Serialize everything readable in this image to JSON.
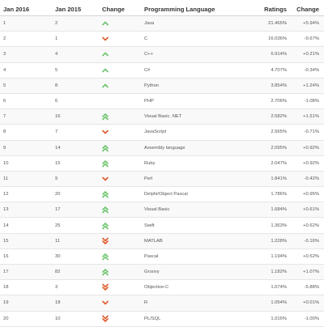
{
  "header": {
    "col1": "Jan 2016",
    "col2": "Jan 2015",
    "col3": "Change",
    "col4": "Programming Language",
    "col5": "Ratings",
    "col6": "Change"
  },
  "colors": {
    "up": "#6cc46c",
    "down": "#e05a2a"
  },
  "rows": [
    {
      "rank2016": "1",
      "rank2015": "2",
      "trend": "up",
      "language": "Java",
      "rating": "21.465%",
      "change": "+5.94%"
    },
    {
      "rank2016": "2",
      "rank2015": "1",
      "trend": "down",
      "language": "C",
      "rating": "16.036%",
      "change": "-0.67%"
    },
    {
      "rank2016": "3",
      "rank2015": "4",
      "trend": "up",
      "language": "C++",
      "rating": "6.914%",
      "change": "+0.21%"
    },
    {
      "rank2016": "4",
      "rank2015": "5",
      "trend": "up",
      "language": "C#",
      "rating": "4.707%",
      "change": "-0.34%"
    },
    {
      "rank2016": "5",
      "rank2015": "8",
      "trend": "up",
      "language": "Python",
      "rating": "3.854%",
      "change": "+1.24%"
    },
    {
      "rank2016": "6",
      "rank2015": "6",
      "trend": "none",
      "language": "PHP",
      "rating": "2.706%",
      "change": "-1.08%"
    },
    {
      "rank2016": "7",
      "rank2015": "16",
      "trend": "double-up",
      "language": "Visual Basic .NET",
      "rating": "2.582%",
      "change": "+1.51%"
    },
    {
      "rank2016": "8",
      "rank2015": "7",
      "trend": "down",
      "language": "JavaScript",
      "rating": "2.565%",
      "change": "-0.71%"
    },
    {
      "rank2016": "9",
      "rank2015": "14",
      "trend": "double-up",
      "language": "Assembly language",
      "rating": "2.095%",
      "change": "+0.92%"
    },
    {
      "rank2016": "10",
      "rank2015": "15",
      "trend": "double-up",
      "language": "Ruby",
      "rating": "2.047%",
      "change": "+0.92%"
    },
    {
      "rank2016": "11",
      "rank2015": "9",
      "trend": "down",
      "language": "Perl",
      "rating": "1.841%",
      "change": "-0.42%"
    },
    {
      "rank2016": "12",
      "rank2015": "20",
      "trend": "double-up",
      "language": "Delphi/Object Pascal",
      "rating": "1.786%",
      "change": "+0.95%"
    },
    {
      "rank2016": "13",
      "rank2015": "17",
      "trend": "double-up",
      "language": "Visual Basic",
      "rating": "1.684%",
      "change": "+0.61%"
    },
    {
      "rank2016": "14",
      "rank2015": "25",
      "trend": "double-up",
      "language": "Swift",
      "rating": "1.363%",
      "change": "+0.62%"
    },
    {
      "rank2016": "15",
      "rank2015": "11",
      "trend": "double-down",
      "language": "MATLAB",
      "rating": "1.228%",
      "change": "-0.16%"
    },
    {
      "rank2016": "16",
      "rank2015": "30",
      "trend": "double-up",
      "language": "Pascal",
      "rating": "1.194%",
      "change": "+0.52%"
    },
    {
      "rank2016": "17",
      "rank2015": "82",
      "trend": "double-up",
      "language": "Groovy",
      "rating": "1.182%",
      "change": "+1.07%"
    },
    {
      "rank2016": "18",
      "rank2015": "3",
      "trend": "double-down",
      "language": "Objective-C",
      "rating": "1.074%",
      "change": "-5.88%"
    },
    {
      "rank2016": "19",
      "rank2015": "18",
      "trend": "down",
      "language": "R",
      "rating": "1.054%",
      "change": "+0.01%"
    },
    {
      "rank2016": "20",
      "rank2015": "10",
      "trend": "double-down",
      "language": "PL/SQL",
      "rating": "1.016%",
      "change": "-1.00%"
    }
  ]
}
